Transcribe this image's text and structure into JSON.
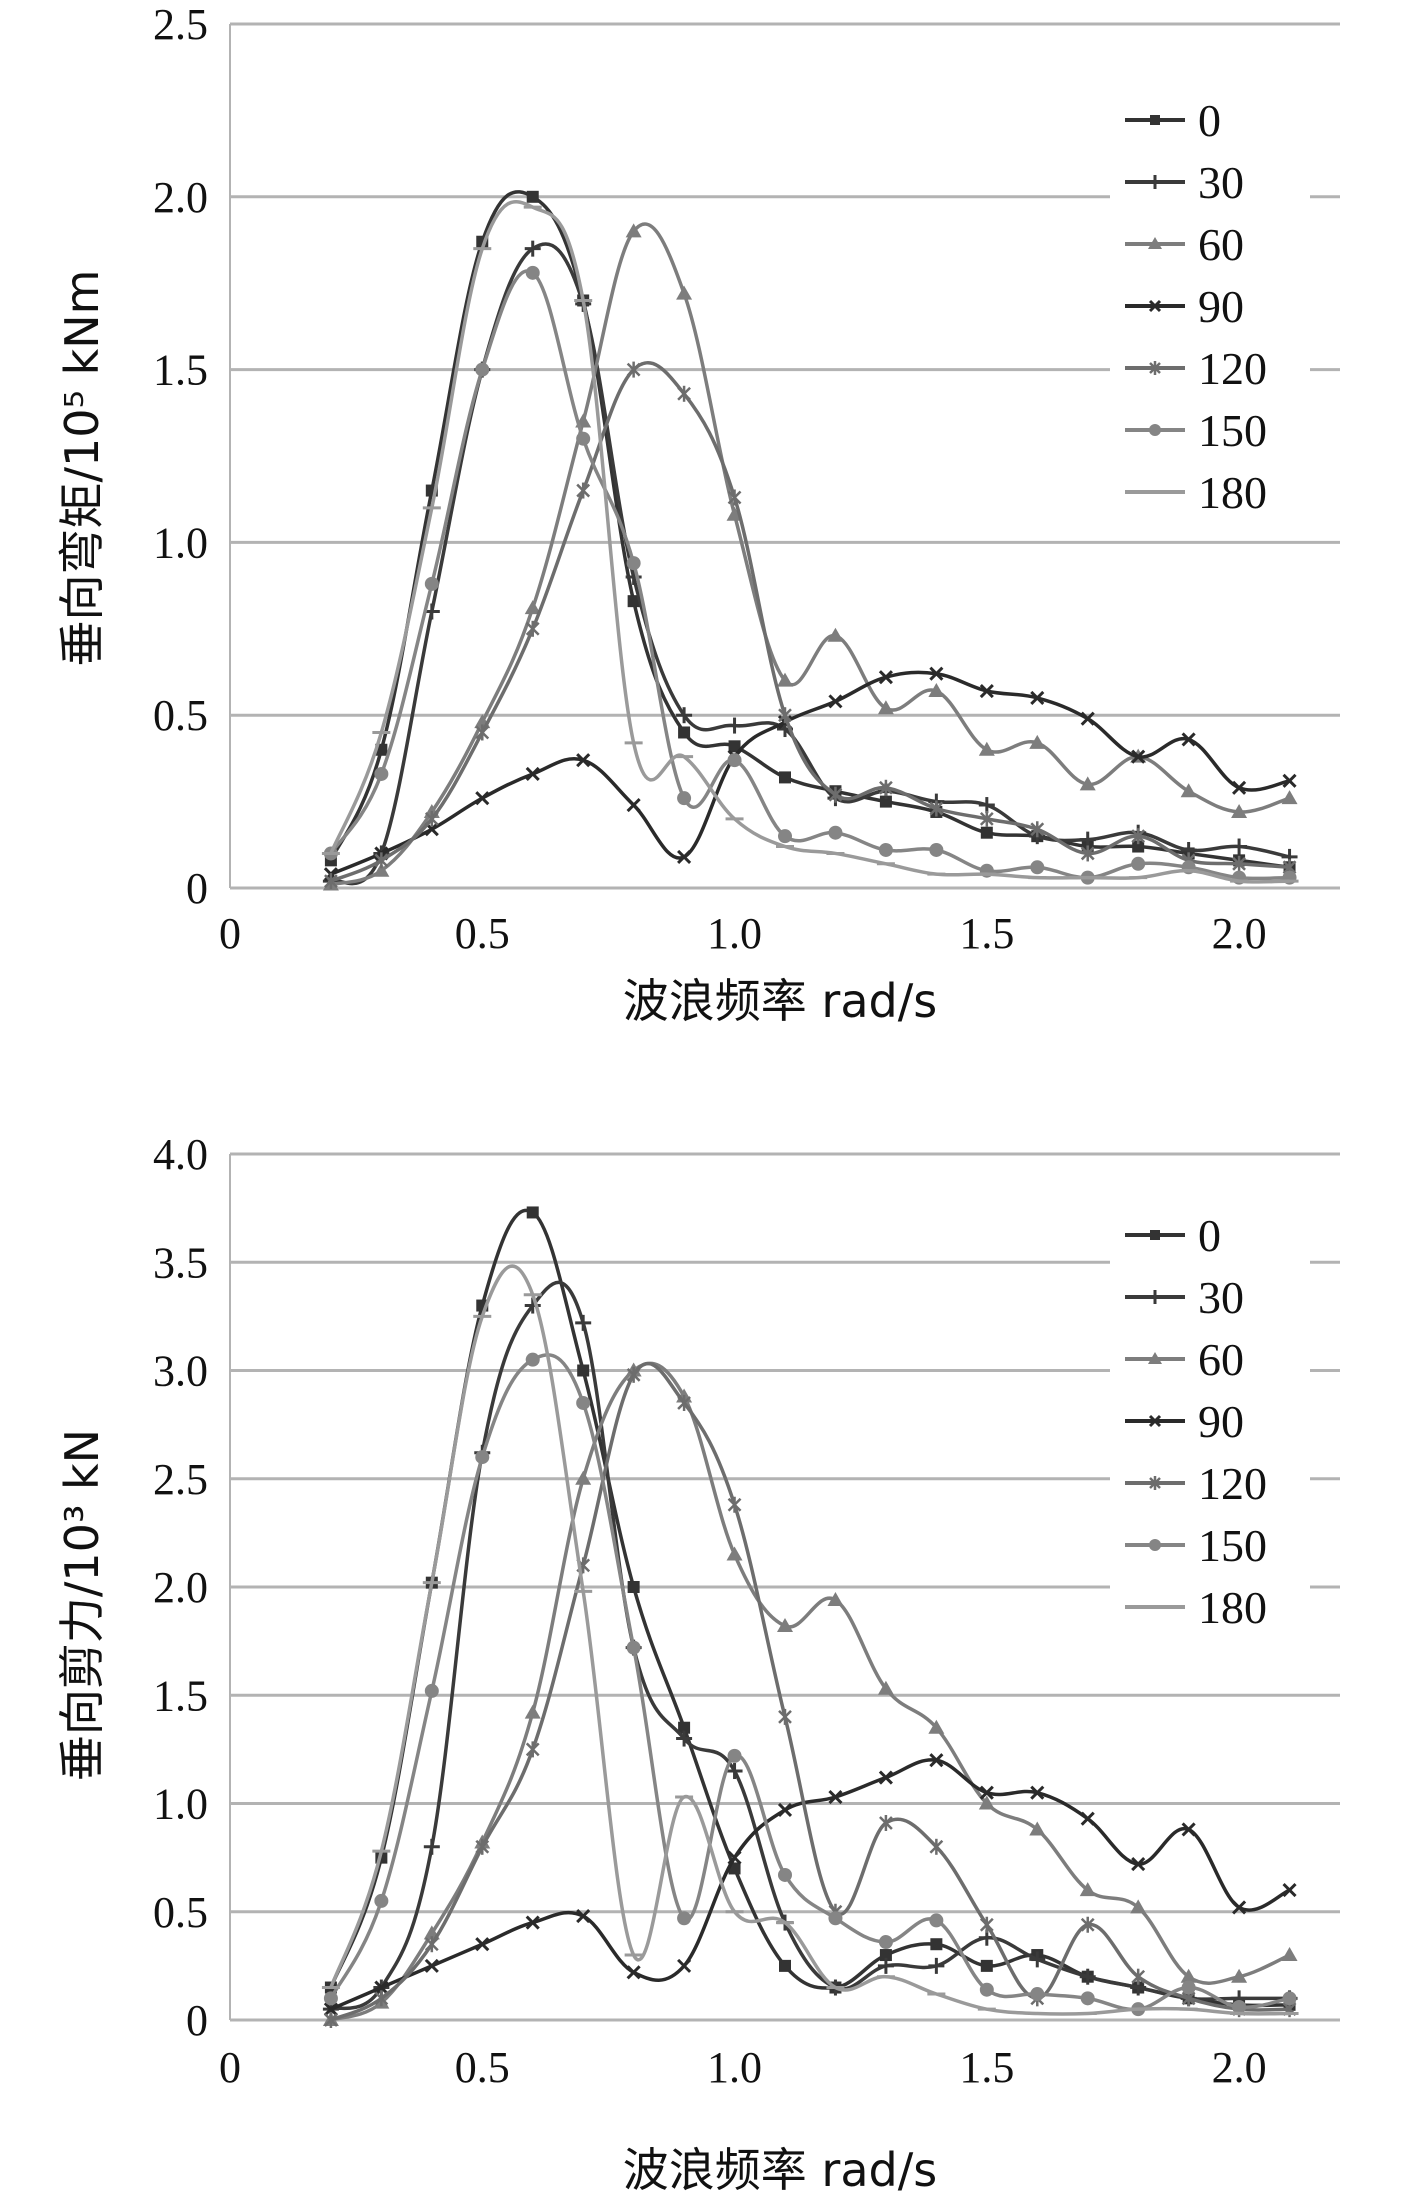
{
  "chart_data": [
    {
      "type": "line",
      "title": "",
      "xlabel": "波浪频率 rad/s",
      "ylabel": "垂向弯矩/10⁵ kNm",
      "xlim": [
        0,
        2.2
      ],
      "ylim": [
        0,
        2.5
      ],
      "grid": true,
      "legend_position": "top-right",
      "x_ticks": [
        "0",
        "0.5",
        "1.0",
        "1.5",
        "2.0"
      ],
      "y_ticks": [
        "0",
        "0.5",
        "1.0",
        "1.5",
        "2.0",
        "2.5"
      ],
      "x": [
        0.2,
        0.3,
        0.4,
        0.5,
        0.6,
        0.7,
        0.8,
        0.9,
        1.0,
        1.1,
        1.2,
        1.3,
        1.4,
        1.5,
        1.6,
        1.7,
        1.8,
        1.9,
        2.0,
        2.1
      ],
      "series": [
        {
          "name": "0",
          "color": "#333333",
          "values": [
            0.08,
            0.4,
            1.15,
            1.87,
            2.0,
            1.7,
            0.83,
            0.45,
            0.41,
            0.32,
            0.28,
            0.25,
            0.22,
            0.16,
            0.15,
            0.12,
            0.12,
            0.1,
            0.08,
            0.06
          ]
        },
        {
          "name": "30",
          "color": "#3a3a3a",
          "values": [
            0.02,
            0.1,
            0.8,
            1.5,
            1.85,
            1.69,
            0.9,
            0.5,
            0.47,
            0.46,
            0.26,
            0.28,
            0.25,
            0.24,
            0.15,
            0.14,
            0.16,
            0.11,
            0.12,
            0.09
          ]
        },
        {
          "name": "60",
          "color": "#7d7d7d",
          "values": [
            0.01,
            0.05,
            0.22,
            0.48,
            0.81,
            1.35,
            1.9,
            1.72,
            1.08,
            0.6,
            0.73,
            0.52,
            0.57,
            0.4,
            0.42,
            0.3,
            0.38,
            0.28,
            0.22,
            0.26
          ]
        },
        {
          "name": "90",
          "color": "#2a2a2a",
          "values": [
            0.04,
            0.1,
            0.17,
            0.26,
            0.33,
            0.37,
            0.24,
            0.09,
            0.38,
            0.48,
            0.54,
            0.61,
            0.62,
            0.57,
            0.55,
            0.49,
            0.38,
            0.43,
            0.29,
            0.31
          ]
        },
        {
          "name": "120",
          "color": "#6d6d6d",
          "values": [
            0.02,
            0.08,
            0.2,
            0.45,
            0.75,
            1.15,
            1.5,
            1.43,
            1.13,
            0.5,
            0.27,
            0.29,
            0.23,
            0.2,
            0.17,
            0.1,
            0.15,
            0.08,
            0.07,
            0.06
          ]
        },
        {
          "name": "150",
          "color": "#858585",
          "values": [
            0.1,
            0.33,
            0.88,
            1.5,
            1.78,
            1.3,
            0.94,
            0.26,
            0.37,
            0.15,
            0.16,
            0.11,
            0.11,
            0.05,
            0.06,
            0.03,
            0.07,
            0.06,
            0.03,
            0.03
          ]
        },
        {
          "name": "180",
          "color": "#9a9a9a",
          "values": [
            0.1,
            0.45,
            1.1,
            1.85,
            1.97,
            1.7,
            0.42,
            0.38,
            0.2,
            0.12,
            0.1,
            0.07,
            0.04,
            0.04,
            0.03,
            0.03,
            0.03,
            0.05,
            0.02,
            0.02
          ]
        }
      ]
    },
    {
      "type": "line",
      "title": "",
      "xlabel": "波浪频率 rad/s",
      "ylabel": "垂向剪力/10³ kN",
      "xlim": [
        0,
        2.2
      ],
      "ylim": [
        0,
        4.0
      ],
      "grid": true,
      "legend_position": "top-right",
      "x_ticks": [
        "0",
        "0.5",
        "1.0",
        "1.5",
        "2.0"
      ],
      "y_ticks": [
        "0",
        "0.5",
        "1.0",
        "1.5",
        "2.0",
        "2.5",
        "3.0",
        "3.5",
        "4.0"
      ],
      "x": [
        0.2,
        0.3,
        0.4,
        0.5,
        0.6,
        0.7,
        0.8,
        0.9,
        1.0,
        1.1,
        1.2,
        1.3,
        1.4,
        1.5,
        1.6,
        1.7,
        1.8,
        1.9,
        2.0,
        2.1
      ],
      "series": [
        {
          "name": "0",
          "color": "#333333",
          "values": [
            0.15,
            0.75,
            2.02,
            3.3,
            3.73,
            3.0,
            2.0,
            1.35,
            0.7,
            0.25,
            0.15,
            0.3,
            0.35,
            0.25,
            0.3,
            0.2,
            0.15,
            0.1,
            0.07,
            0.07
          ]
        },
        {
          "name": "30",
          "color": "#3a3a3a",
          "values": [
            0.05,
            0.15,
            0.8,
            2.62,
            3.3,
            3.22,
            1.72,
            1.3,
            1.15,
            0.45,
            0.15,
            0.25,
            0.25,
            0.38,
            0.28,
            0.2,
            0.15,
            0.1,
            0.1,
            0.1
          ]
        },
        {
          "name": "60",
          "color": "#7d7d7d",
          "values": [
            0.0,
            0.08,
            0.4,
            0.82,
            1.42,
            2.5,
            3.0,
            2.88,
            2.15,
            1.82,
            1.94,
            1.53,
            1.35,
            1.0,
            0.88,
            0.6,
            0.52,
            0.2,
            0.2,
            0.3
          ]
        },
        {
          "name": "90",
          "color": "#2a2a2a",
          "values": [
            0.05,
            0.15,
            0.25,
            0.35,
            0.45,
            0.48,
            0.22,
            0.25,
            0.75,
            0.97,
            1.03,
            1.12,
            1.2,
            1.05,
            1.05,
            0.93,
            0.72,
            0.88,
            0.52,
            0.6
          ]
        },
        {
          "name": "120",
          "color": "#6d6d6d",
          "values": [
            0.0,
            0.1,
            0.35,
            0.8,
            1.25,
            2.1,
            2.98,
            2.85,
            2.38,
            1.4,
            0.5,
            0.91,
            0.8,
            0.44,
            0.1,
            0.44,
            0.2,
            0.1,
            0.05,
            0.05
          ]
        },
        {
          "name": "150",
          "color": "#858585",
          "values": [
            0.1,
            0.55,
            1.52,
            2.6,
            3.05,
            2.85,
            1.72,
            0.47,
            1.22,
            0.67,
            0.47,
            0.36,
            0.46,
            0.14,
            0.12,
            0.1,
            0.05,
            0.15,
            0.06,
            0.1
          ]
        },
        {
          "name": "180",
          "color": "#9a9a9a",
          "values": [
            0.15,
            0.78,
            2.02,
            3.25,
            3.35,
            1.98,
            0.3,
            1.03,
            0.5,
            0.45,
            0.15,
            0.2,
            0.12,
            0.05,
            0.03,
            0.03,
            0.05,
            0.05,
            0.03,
            0.03
          ]
        }
      ]
    }
  ]
}
